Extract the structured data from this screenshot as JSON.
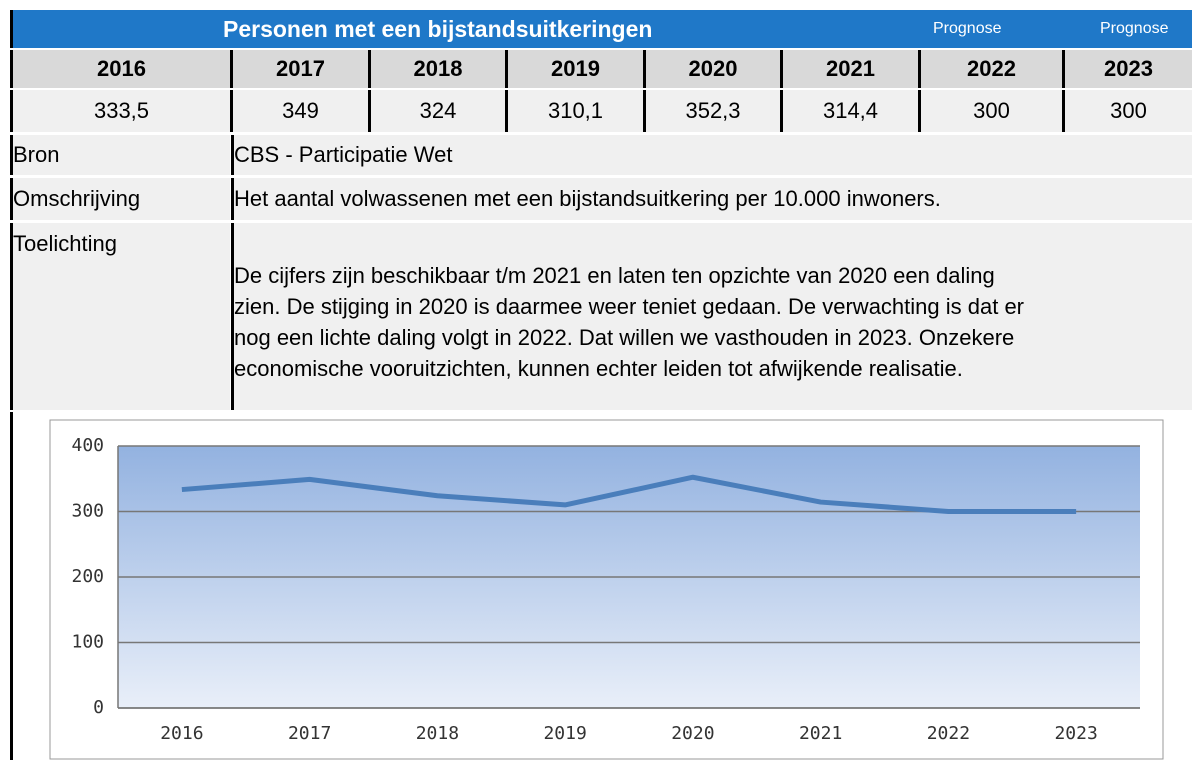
{
  "header": {
    "title": "Personen met een bijstandsuitkeringen",
    "notes": [
      "Prognose",
      "Prognose"
    ]
  },
  "table": {
    "years": [
      "2016",
      "2017",
      "2018",
      "2019",
      "2020",
      "2021",
      "2022",
      "2023"
    ],
    "values": [
      "333,5",
      "349",
      "324",
      "310,1",
      "352,3",
      "314,4",
      "300",
      "300"
    ],
    "rows": [
      [
        "Bron",
        "CBS - Participatie Wet"
      ],
      [
        "Omschrijving",
        "Het aantal volwassenen met een bijstandsuitkering per 10.000 inwoners."
      ]
    ],
    "explanation": {
      "label": "Toelichting",
      "lines": [
        "De cijfers zijn beschikbaar t/m 2021 en laten ten opzichte van 2020 een daling",
        "zien. De stijging in 2020 is daarmee weer teniet gedaan. De verwachting is dat er",
        "nog een lichte daling volgt in 2022. Dat willen we vasthouden in 2023. Onzekere",
        "economische vooruitzichten, kunnen echter leiden tot afwijkende realisatie."
      ]
    }
  },
  "chart_data": {
    "type": "line",
    "categories": [
      "2016",
      "2017",
      "2018",
      "2019",
      "2020",
      "2021",
      "2022",
      "2023"
    ],
    "values": [
      333.5,
      349,
      324,
      310.1,
      352.3,
      314.4,
      300,
      300
    ],
    "color": "#4a7ebb",
    "ylim": [
      0,
      400
    ],
    "yticks": [
      0,
      100,
      200,
      300,
      400
    ],
    "grid": true
  }
}
